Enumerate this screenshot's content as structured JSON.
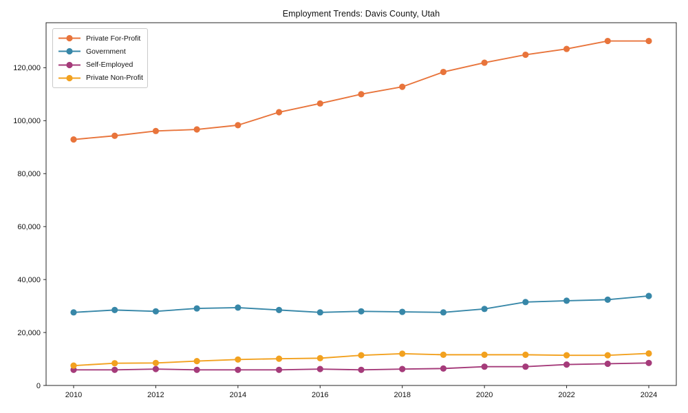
{
  "chart_data": {
    "type": "line",
    "title": "Employment Trends: Davis County, Utah",
    "xlabel": "",
    "ylabel": "",
    "grid": false,
    "legend_position": "upper left",
    "axis_color": "#262626",
    "x": [
      2010,
      2011,
      2012,
      2013,
      2014,
      2015,
      2016,
      2017,
      2018,
      2019,
      2020,
      2021,
      2022,
      2023,
      2024
    ],
    "xticks": [
      2010,
      2012,
      2014,
      2016,
      2018,
      2020,
      2022,
      2024
    ],
    "yticks": [
      0,
      20000,
      40000,
      60000,
      80000,
      100000,
      120000
    ],
    "ylim": [
      0,
      137000
    ],
    "series": [
      {
        "name": "Private For-Profit",
        "color": "#E8743B",
        "values": [
          92900,
          94300,
          96100,
          96700,
          98300,
          103200,
          106500,
          110000,
          112800,
          118400,
          121900,
          124900,
          127100,
          130100,
          130100
        ]
      },
      {
        "name": "Government",
        "color": "#3787A8",
        "values": [
          27600,
          28500,
          28000,
          29100,
          29400,
          28500,
          27600,
          28000,
          27800,
          27600,
          28900,
          31500,
          32000,
          32400,
          33800
        ]
      },
      {
        "name": "Self-Employed",
        "color": "#A53B7A",
        "values": [
          5900,
          5900,
          6200,
          5900,
          5900,
          5900,
          6200,
          5900,
          6200,
          6400,
          7100,
          7100,
          7900,
          8200,
          8500
        ]
      },
      {
        "name": "Private Non-Profit",
        "color": "#F2A11F",
        "values": [
          7500,
          8400,
          8500,
          9200,
          9800,
          10100,
          10300,
          11400,
          12000,
          11600,
          11600,
          11600,
          11400,
          11400,
          12100
        ]
      }
    ]
  }
}
